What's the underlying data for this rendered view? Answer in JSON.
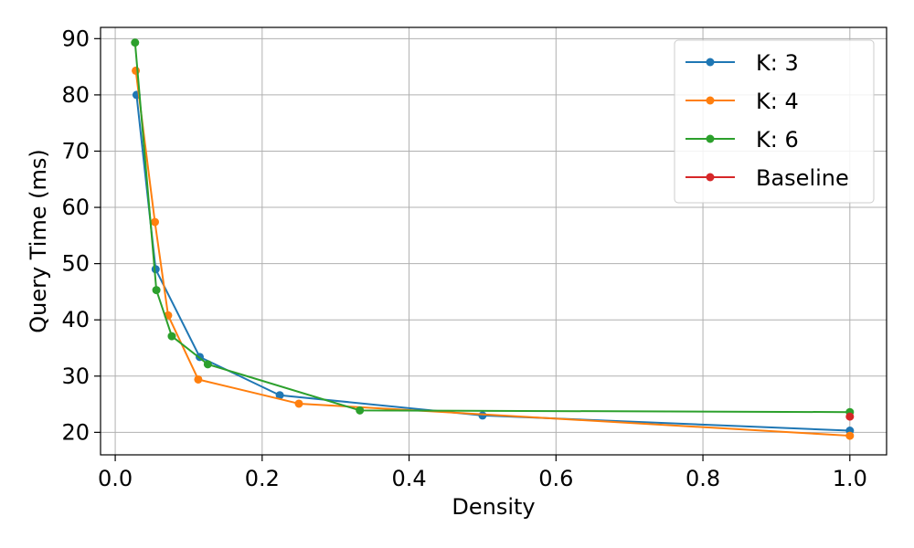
{
  "chart_data": {
    "type": "line",
    "xlabel": "Density",
    "ylabel": "Query Time (ms)",
    "xlim": [
      -0.02,
      1.05
    ],
    "ylim": [
      16,
      92
    ],
    "x_ticks": [
      0.0,
      0.2,
      0.4,
      0.6,
      0.8,
      1.0
    ],
    "x_tick_labels": [
      "0.0",
      "0.2",
      "0.4",
      "0.6",
      "0.8",
      "1.0"
    ],
    "y_ticks": [
      20,
      30,
      40,
      50,
      60,
      70,
      80,
      90
    ],
    "y_tick_labels": [
      "20",
      "30",
      "40",
      "50",
      "60",
      "70",
      "80",
      "90"
    ],
    "grid": true,
    "legend_position": "top-right",
    "series": [
      {
        "name": "K: 3",
        "color": "#1f77b4",
        "x": [
          0.029,
          0.055,
          0.115,
          0.224,
          0.5,
          1.0
        ],
        "y": [
          80.0,
          49.0,
          33.4,
          26.6,
          23.0,
          20.3
        ]
      },
      {
        "name": "K: 4",
        "color": "#ff7f0e",
        "x": [
          0.028,
          0.054,
          0.072,
          0.113,
          0.25,
          1.0
        ],
        "y": [
          84.3,
          57.4,
          40.8,
          29.4,
          25.1,
          19.4
        ]
      },
      {
        "name": "K: 6",
        "color": "#2ca02c",
        "x": [
          0.027,
          0.056,
          0.077,
          0.126,
          0.333,
          1.0
        ],
        "y": [
          89.3,
          45.3,
          37.1,
          32.1,
          23.9,
          23.6
        ]
      },
      {
        "name": "Baseline",
        "color": "#d62728",
        "x": [
          1.0
        ],
        "y": [
          22.8
        ]
      }
    ]
  }
}
